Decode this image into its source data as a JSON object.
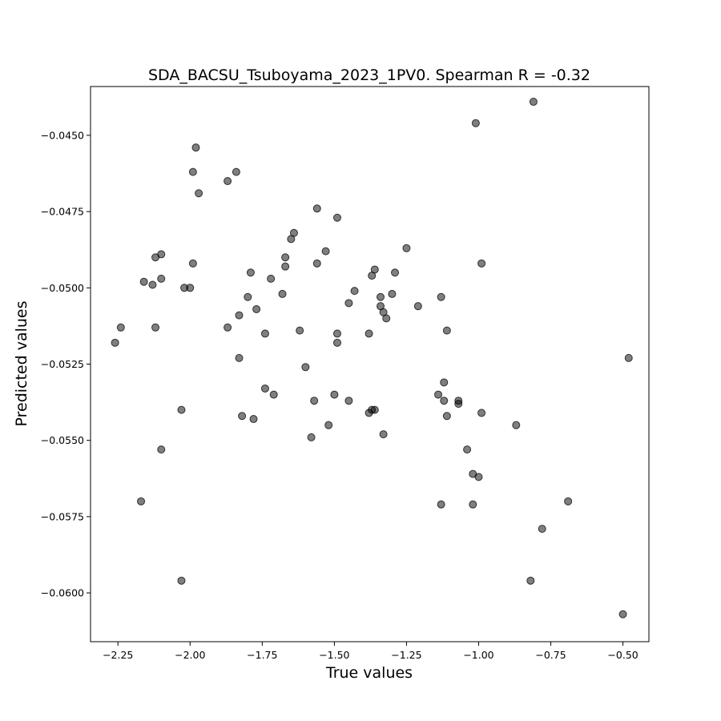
{
  "chart_data": {
    "type": "scatter",
    "title": "SDA_BACSU_Tsuboyama_2023_1PV0. Spearman R = -0.32",
    "xlabel": "True values",
    "ylabel": "Predicted values",
    "xlim": [
      -2.345,
      -0.41
    ],
    "ylim": [
      -0.0616,
      -0.0434
    ],
    "xticks": [
      -2.25,
      -2.0,
      -1.75,
      -1.5,
      -1.25,
      -1.0,
      -0.75,
      -0.5
    ],
    "xtick_labels": [
      "−2.25",
      "−2.00",
      "−1.75",
      "−1.50",
      "−1.25",
      "−1.00",
      "−0.75",
      "−0.50"
    ],
    "yticks": [
      -0.06,
      -0.0575,
      -0.055,
      -0.0525,
      -0.05,
      -0.0475,
      -0.045
    ],
    "ytick_labels": [
      "−0.0600",
      "−0.0575",
      "−0.0550",
      "−0.0525",
      "−0.0500",
      "−0.0475",
      "−0.0450"
    ],
    "grid": false,
    "legend": "none",
    "point_color": "#000000",
    "point_alpha": 0.5,
    "points": [
      [
        -2.26,
        -0.0518
      ],
      [
        -2.24,
        -0.0513
      ],
      [
        -2.17,
        -0.057
      ],
      [
        -2.16,
        -0.0498
      ],
      [
        -2.13,
        -0.0499
      ],
      [
        -2.12,
        -0.049
      ],
      [
        -2.12,
        -0.0513
      ],
      [
        -2.1,
        -0.0489
      ],
      [
        -2.1,
        -0.0497
      ],
      [
        -2.1,
        -0.0553
      ],
      [
        -2.03,
        -0.054
      ],
      [
        -2.03,
        -0.0596
      ],
      [
        -2.02,
        -0.05
      ],
      [
        -2.0,
        -0.05
      ],
      [
        -1.99,
        -0.0492
      ],
      [
        -1.99,
        -0.0462
      ],
      [
        -1.98,
        -0.0454
      ],
      [
        -1.97,
        -0.0469
      ],
      [
        -1.87,
        -0.0465
      ],
      [
        -1.87,
        -0.0513
      ],
      [
        -1.84,
        -0.0462
      ],
      [
        -1.83,
        -0.0509
      ],
      [
        -1.83,
        -0.0523
      ],
      [
        -1.82,
        -0.0542
      ],
      [
        -1.8,
        -0.0503
      ],
      [
        -1.79,
        -0.0495
      ],
      [
        -1.78,
        -0.0543
      ],
      [
        -1.77,
        -0.0507
      ],
      [
        -1.74,
        -0.0533
      ],
      [
        -1.74,
        -0.0515
      ],
      [
        -1.72,
        -0.0497
      ],
      [
        -1.71,
        -0.0535
      ],
      [
        -1.68,
        -0.0502
      ],
      [
        -1.67,
        -0.049
      ],
      [
        -1.67,
        -0.0493
      ],
      [
        -1.65,
        -0.0484
      ],
      [
        -1.64,
        -0.0482
      ],
      [
        -1.62,
        -0.0514
      ],
      [
        -1.6,
        -0.0526
      ],
      [
        -1.58,
        -0.0549
      ],
      [
        -1.57,
        -0.0537
      ],
      [
        -1.56,
        -0.0474
      ],
      [
        -1.56,
        -0.0492
      ],
      [
        -1.53,
        -0.0488
      ],
      [
        -1.52,
        -0.0545
      ],
      [
        -1.5,
        -0.0535
      ],
      [
        -1.49,
        -0.0477
      ],
      [
        -1.49,
        -0.0515
      ],
      [
        -1.49,
        -0.0518
      ],
      [
        -1.45,
        -0.0505
      ],
      [
        -1.45,
        -0.0537
      ],
      [
        -1.43,
        -0.0501
      ],
      [
        -1.38,
        -0.0515
      ],
      [
        -1.38,
        -0.0541
      ],
      [
        -1.37,
        -0.054
      ],
      [
        -1.37,
        -0.0496
      ],
      [
        -1.36,
        -0.054
      ],
      [
        -1.36,
        -0.0494
      ],
      [
        -1.34,
        -0.0503
      ],
      [
        -1.34,
        -0.0506
      ],
      [
        -1.33,
        -0.0508
      ],
      [
        -1.33,
        -0.0548
      ],
      [
        -1.32,
        -0.051
      ],
      [
        -1.3,
        -0.0502
      ],
      [
        -1.29,
        -0.0495
      ],
      [
        -1.25,
        -0.0487
      ],
      [
        -1.21,
        -0.0506
      ],
      [
        -1.14,
        -0.0535
      ],
      [
        -1.13,
        -0.0503
      ],
      [
        -1.13,
        -0.0571
      ],
      [
        -1.12,
        -0.0531
      ],
      [
        -1.12,
        -0.0537
      ],
      [
        -1.11,
        -0.0542
      ],
      [
        -1.11,
        -0.0514
      ],
      [
        -1.07,
        -0.0537
      ],
      [
        -1.07,
        -0.0538
      ],
      [
        -1.04,
        -0.0553
      ],
      [
        -1.02,
        -0.0561
      ],
      [
        -1.02,
        -0.0571
      ],
      [
        -1.01,
        -0.0446
      ],
      [
        -1.0,
        -0.0562
      ],
      [
        -0.99,
        -0.0492
      ],
      [
        -0.99,
        -0.0541
      ],
      [
        -0.87,
        -0.0545
      ],
      [
        -0.82,
        -0.0596
      ],
      [
        -0.81,
        -0.0439
      ],
      [
        -0.78,
        -0.0579
      ],
      [
        -0.69,
        -0.057
      ],
      [
        -0.5,
        -0.0607
      ],
      [
        -0.48,
        -0.0523
      ]
    ]
  }
}
